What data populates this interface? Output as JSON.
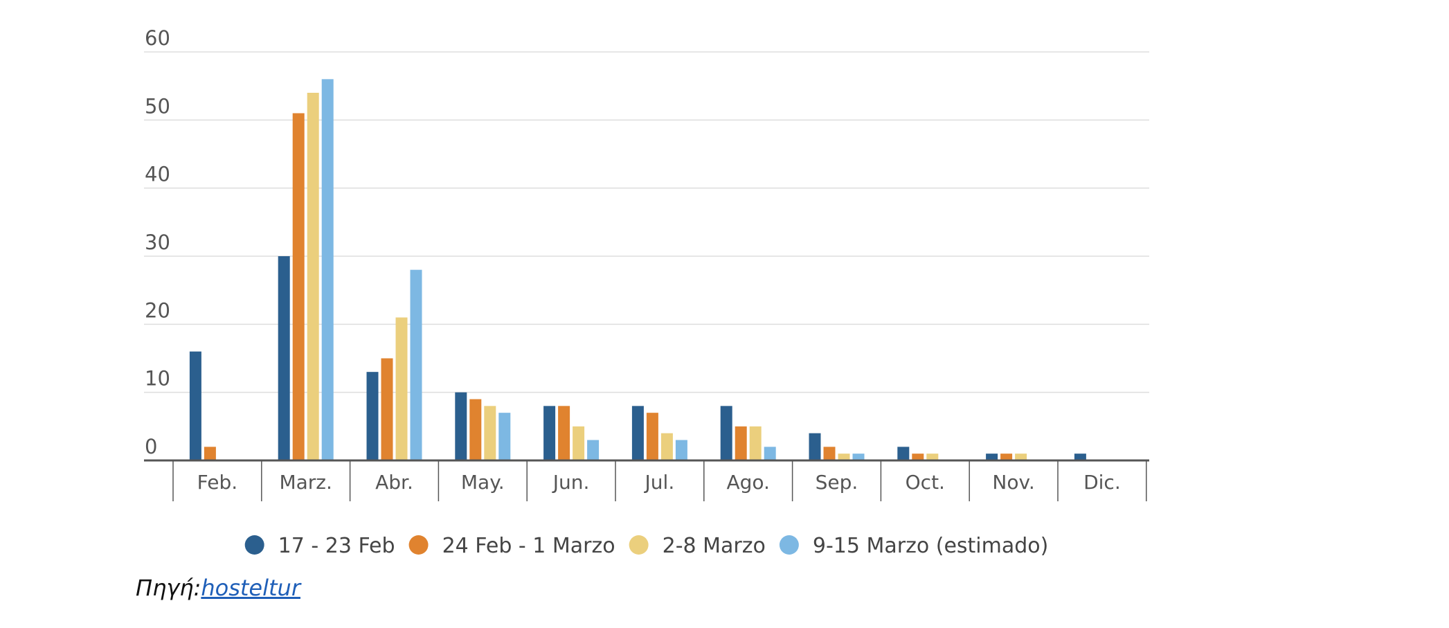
{
  "chart_data": {
    "type": "bar",
    "categories": [
      "Feb.",
      "Marz.",
      "Abr.",
      "May.",
      "Jun.",
      "Jul.",
      "Ago.",
      "Sep.",
      "Oct.",
      "Nov.",
      "Dic."
    ],
    "series": [
      {
        "name": "17 - 23 Feb",
        "color": "#2b5f8e",
        "values": [
          16,
          30,
          13,
          10,
          8,
          8,
          8,
          4,
          2,
          1,
          1
        ]
      },
      {
        "name": "24 Feb - 1 Marzo",
        "color": "#e0832f",
        "values": [
          2,
          51,
          15,
          9,
          8,
          7,
          5,
          2,
          1,
          1,
          0
        ]
      },
      {
        "name": "2-8 Marzo",
        "color": "#ebcf7d",
        "values": [
          0,
          54,
          21,
          8,
          5,
          4,
          5,
          1,
          1,
          1,
          0
        ]
      },
      {
        "name": "9-15 Marzo (estimado)",
        "color": "#7db8e3",
        "values": [
          0,
          56,
          28,
          7,
          3,
          3,
          2,
          1,
          0,
          0,
          0
        ]
      }
    ],
    "yticks": [
      0,
      10,
      20,
      30,
      40,
      50,
      60
    ],
    "ylim": [
      0,
      60
    ],
    "grid": true,
    "legend": "bottom",
    "title": "",
    "xlabel": "",
    "ylabel": ""
  },
  "source": {
    "prefix": "Πηγή:",
    "link_text": "hosteltur"
  }
}
